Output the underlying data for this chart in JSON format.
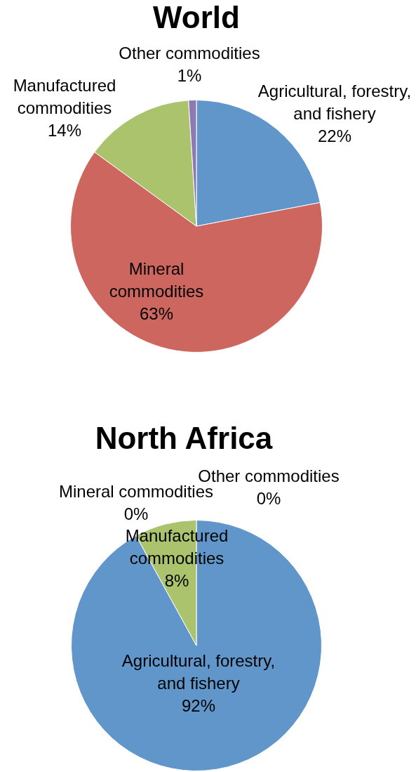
{
  "chart_data": [
    {
      "type": "pie",
      "title": "World",
      "categories": [
        "Agricultural, forestry, and fishery",
        "Mineral commodities",
        "Manufactured commodities",
        "Other commodities"
      ],
      "values": [
        22,
        63,
        14,
        1
      ],
      "colors": [
        "#6096ca",
        "#cd665f",
        "#aac36c",
        "#8e79b3"
      ],
      "value_labels": [
        "22%",
        "63%",
        "14%",
        "1%"
      ]
    },
    {
      "type": "pie",
      "title": "North Africa",
      "categories": [
        "Agricultural, forestry, and fishery",
        "Mineral commodities",
        "Manufactured commodities",
        "Other commodities"
      ],
      "values": [
        92,
        0,
        8,
        0
      ],
      "colors": [
        "#6096ca",
        "#cd665f",
        "#aac36c",
        "#8e79b3"
      ],
      "value_labels": [
        "92%",
        "0%",
        "8%",
        "0%"
      ]
    }
  ]
}
